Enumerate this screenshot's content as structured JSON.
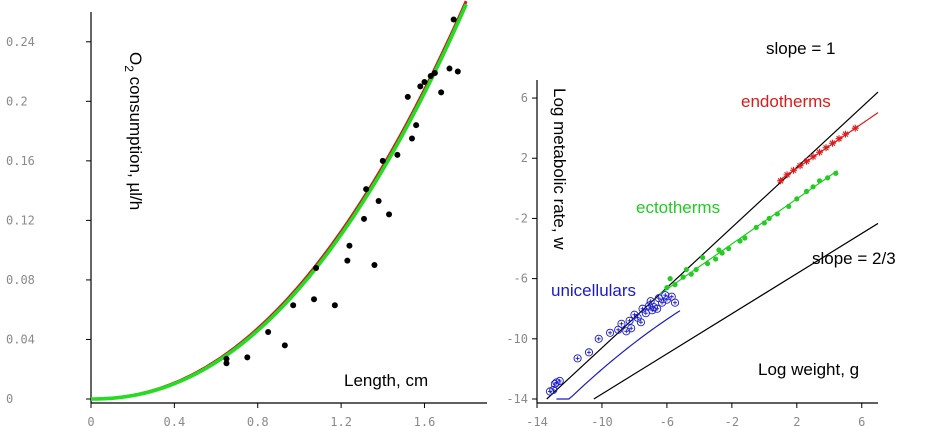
{
  "chart_data": [
    {
      "type": "scatter",
      "xlabel": "Length, cm",
      "ylabel": "O2 consumption, µl/h",
      "ylabel_main": "O",
      "ylabel_sub": "2",
      "ylabel_rest": " consumption, µl/h",
      "xlim": [
        0,
        1.9
      ],
      "ylim": [
        0,
        0.26
      ],
      "x_ticks": [
        0,
        0.4,
        0.8,
        1.2,
        1.6
      ],
      "x_tick_labels": [
        "0",
        "0.4",
        "0.8",
        "1.2",
        "1.6"
      ],
      "y_ticks": [
        0,
        0.04,
        0.08,
        0.12,
        0.16,
        0.2,
        0.24
      ],
      "y_tick_labels": [
        "0",
        "0.04",
        "0.08",
        "0.12",
        "0.16",
        "0.2",
        "0.24"
      ],
      "grid": false,
      "series": [
        {
          "kind": "points",
          "color": "#000000",
          "points": [
            [
              0.65,
              0.027
            ],
            [
              0.65,
              0.024
            ],
            [
              0.75,
              0.028
            ],
            [
              0.85,
              0.045
            ],
            [
              0.93,
              0.036
            ],
            [
              0.97,
              0.063
            ],
            [
              1.07,
              0.067
            ],
            [
              1.08,
              0.088
            ],
            [
              1.17,
              0.063
            ],
            [
              1.23,
              0.093
            ],
            [
              1.24,
              0.103
            ],
            [
              1.31,
              0.121
            ],
            [
              1.32,
              0.141
            ],
            [
              1.36,
              0.09
            ],
            [
              1.38,
              0.133
            ],
            [
              1.4,
              0.16
            ],
            [
              1.43,
              0.124
            ],
            [
              1.47,
              0.164
            ],
            [
              1.52,
              0.203
            ],
            [
              1.54,
              0.175
            ],
            [
              1.56,
              0.184
            ],
            [
              1.58,
              0.21
            ],
            [
              1.6,
              0.213
            ],
            [
              1.63,
              0.217
            ],
            [
              1.65,
              0.219
            ],
            [
              1.68,
              0.206
            ],
            [
              1.72,
              0.222
            ],
            [
              1.74,
              0.255
            ],
            [
              1.76,
              0.22
            ]
          ]
        },
        {
          "kind": "curve",
          "color": "#cc1a1a",
          "formula": "y = 0.0762 * x^2.135",
          "coef": 0.0762,
          "exp": 2.135
        },
        {
          "kind": "curve",
          "color": "#22dd22",
          "formula": "y = 0.0745 * x^2.16",
          "coef": 0.0745,
          "exp": 2.16
        }
      ]
    },
    {
      "type": "scatter",
      "xlabel": "Log weight, g",
      "ylabel": "Log metabolic rate, w",
      "xlim": [
        -14,
        7
      ],
      "ylim": [
        -14,
        7.2
      ],
      "x_ticks": [
        -14,
        -10,
        -6,
        -2,
        2,
        6
      ],
      "x_tick_labels": [
        "-14",
        "-10",
        "-6",
        "-2",
        "2",
        "6"
      ],
      "y_ticks": [
        -14,
        -10,
        -6,
        -2,
        2,
        6
      ],
      "y_tick_labels": [
        "-14",
        "-10",
        "-6",
        "-2",
        "2",
        "6"
      ],
      "grid": false,
      "annotations": [
        {
          "text": "slope = 1",
          "color": "#000000"
        },
        {
          "text": "slope = 2/3",
          "color": "#000000"
        },
        {
          "text": "endotherms",
          "color": "#dd1a1a"
        },
        {
          "text": "ectotherms",
          "color": "#22cc22"
        },
        {
          "text": "unicellulars",
          "color": "#1a1acc"
        }
      ],
      "reference_lines": [
        {
          "label": "slope = 1",
          "slope": 1,
          "intercept": -0.6,
          "color": "#000000"
        },
        {
          "label": "slope = 2/3",
          "slope": 0.6667,
          "intercept": -7.0,
          "color": "#000000"
        }
      ],
      "series": [
        {
          "name": "endotherms",
          "color": "#dd1a1a",
          "marker": "star",
          "fit": {
            "slope": 0.74,
            "intercept": -0.15,
            "x_range": [
              0.9,
              7.0
            ]
          },
          "points": [
            [
              1.0,
              0.5
            ],
            [
              1.4,
              0.9
            ],
            [
              1.8,
              1.2
            ],
            [
              2.2,
              1.5
            ],
            [
              2.6,
              1.8
            ],
            [
              3.0,
              2.1
            ],
            [
              3.4,
              2.4
            ],
            [
              3.8,
              2.7
            ],
            [
              4.2,
              3.0
            ],
            [
              4.6,
              3.3
            ],
            [
              5.0,
              3.6
            ],
            [
              5.6,
              4.0
            ]
          ]
        },
        {
          "name": "ectotherms",
          "color": "#22cc22",
          "marker": "dot",
          "fit": {
            "slope": 0.75,
            "intercept": -2.2,
            "x_range": [
              -6.5,
              4.5
            ]
          },
          "points": [
            [
              -6.0,
              -6.6
            ],
            [
              -5.5,
              -6.4
            ],
            [
              -5.0,
              -5.9
            ],
            [
              -4.5,
              -5.7
            ],
            [
              -4.2,
              -5.4
            ],
            [
              -3.5,
              -5.0
            ],
            [
              -3.0,
              -4.7
            ],
            [
              -2.6,
              -4.3
            ],
            [
              -2.2,
              -4.0
            ],
            [
              -1.5,
              -3.5
            ],
            [
              -1.2,
              -3.3
            ],
            [
              -0.5,
              -2.6
            ],
            [
              0.0,
              -2.3
            ],
            [
              0.3,
              -2.0
            ],
            [
              0.8,
              -1.7
            ],
            [
              1.5,
              -1.2
            ],
            [
              2.0,
              -0.7
            ],
            [
              2.6,
              -0.2
            ],
            [
              3.0,
              0.1
            ],
            [
              3.4,
              0.5
            ],
            [
              3.9,
              0.7
            ],
            [
              4.4,
              1.0
            ],
            [
              -5.8,
              -6.0
            ],
            [
              -4.8,
              -5.4
            ],
            [
              -3.8,
              -4.6
            ],
            [
              -2.8,
              -4.1
            ]
          ]
        },
        {
          "name": "unicellulars",
          "color": "#1a1acc",
          "marker": "circle-plus",
          "fit": {
            "slope": 0.88,
            "intercept": -3.2,
            "x_range": [
              -12.8,
              -5.2
            ]
          },
          "points": [
            [
              -13.2,
              -13.5
            ],
            [
              -13.0,
              -13.4
            ],
            [
              -12.9,
              -13.0
            ],
            [
              -12.8,
              -12.9
            ],
            [
              -12.6,
              -12.8
            ],
            [
              -11.5,
              -11.3
            ],
            [
              -10.8,
              -10.9
            ],
            [
              -10.2,
              -10.0
            ],
            [
              -9.5,
              -9.6
            ],
            [
              -9.0,
              -9.4
            ],
            [
              -8.8,
              -9.0
            ],
            [
              -8.5,
              -9.5
            ],
            [
              -8.3,
              -8.8
            ],
            [
              -8.0,
              -8.4
            ],
            [
              -7.8,
              -8.6
            ],
            [
              -7.5,
              -8.0
            ],
            [
              -7.3,
              -8.3
            ],
            [
              -7.0,
              -7.5
            ],
            [
              -6.8,
              -7.9
            ],
            [
              -6.5,
              -7.3
            ],
            [
              -6.3,
              -7.6
            ],
            [
              -6.1,
              -7.1
            ],
            [
              -6.0,
              -7.4
            ],
            [
              -5.7,
              -7.2
            ],
            [
              -5.5,
              -7.6
            ],
            [
              -8.2,
              -9.3
            ],
            [
              -7.6,
              -8.9
            ],
            [
              -6.9,
              -8.1
            ],
            [
              -7.1,
              -7.8
            ],
            [
              -6.6,
              -8.0
            ]
          ]
        }
      ]
    }
  ]
}
